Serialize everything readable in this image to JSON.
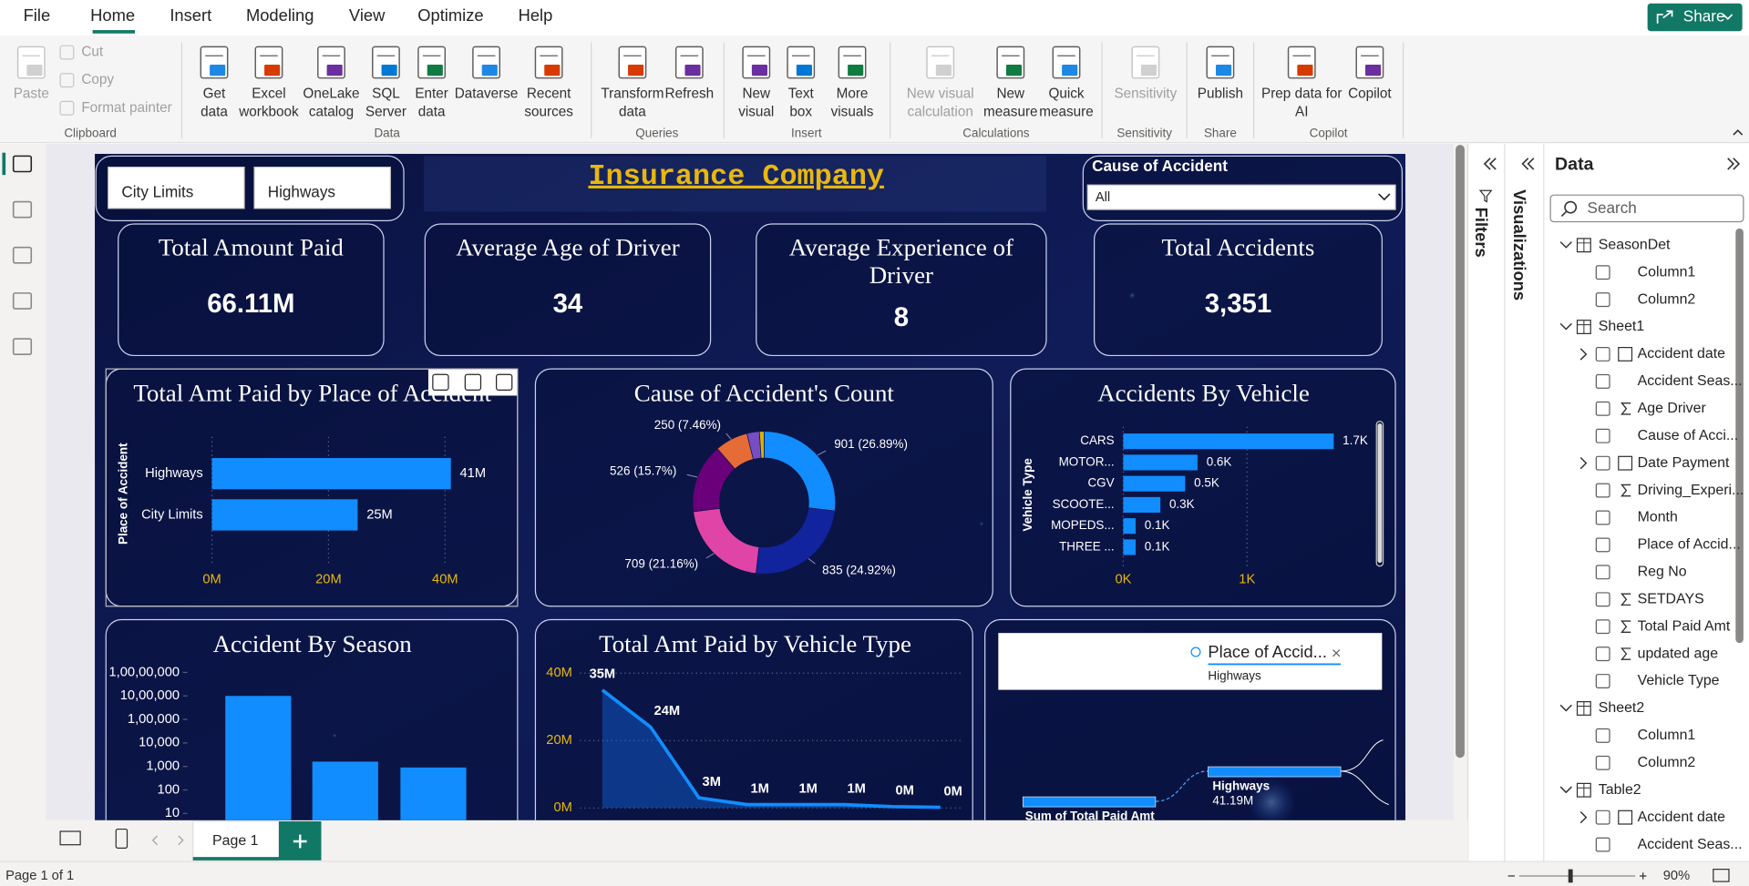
{
  "menu": [
    "File",
    "Home",
    "Insert",
    "Modeling",
    "View",
    "Optimize",
    "Help"
  ],
  "share": "Share",
  "ribbon": [
    {
      "group": "Clipboard",
      "buttons": [
        {
          "label": "Paste",
          "disabled": true
        },
        {
          "label": "Cut",
          "disabled": true
        },
        {
          "label": "Copy",
          "disabled": true
        },
        {
          "label": "Format painter",
          "disabled": true
        }
      ]
    },
    {
      "group": "Data",
      "buttons": [
        {
          "label": "Get data"
        },
        {
          "label": "Excel workbook"
        },
        {
          "label": "OneLake catalog"
        },
        {
          "label": "SQL Server"
        },
        {
          "label": "Enter data"
        },
        {
          "label": "Dataverse"
        },
        {
          "label": "Recent sources"
        }
      ]
    },
    {
      "group": "Queries",
      "buttons": [
        {
          "label": "Transform data"
        },
        {
          "label": "Refresh"
        }
      ]
    },
    {
      "group": "Insert",
      "buttons": [
        {
          "label": "New visual"
        },
        {
          "label": "Text box"
        },
        {
          "label": "More visuals"
        }
      ]
    },
    {
      "group": "Calculations",
      "buttons": [
        {
          "label": "New visual calculation",
          "disabled": true
        },
        {
          "label": "New measure"
        },
        {
          "label": "Quick measure"
        }
      ]
    },
    {
      "group": "Sensitivity",
      "buttons": [
        {
          "label": "Sensitivity",
          "disabled": true
        }
      ]
    },
    {
      "group": "Share",
      "buttons": [
        {
          "label": "Publish"
        }
      ]
    },
    {
      "group": "Copilot",
      "buttons": [
        {
          "label": "Prep data for AI"
        },
        {
          "label": "Copilot"
        }
      ]
    }
  ],
  "report": {
    "slicer": [
      "City Limits",
      "Highways"
    ],
    "title": "Insurance Company",
    "dropdown": {
      "label": "Cause of Accident",
      "value": "All"
    },
    "cards": [
      {
        "label": "Total Amount Paid",
        "value": "66.11M"
      },
      {
        "label": "Average Age of Driver",
        "value": "34"
      },
      {
        "label": "Average Experience of Driver",
        "value": "8"
      },
      {
        "label": "Total Accidents",
        "value": "3,351"
      }
    ],
    "place_chart": {
      "type": "hbar",
      "title": "Total Amt Paid by Place of Accident",
      "y_label": "Place of Accident",
      "categories": [
        "Highways",
        "City Limits"
      ],
      "values": [
        41000000,
        25000000
      ],
      "value_labels": [
        "41M",
        "25M"
      ],
      "color": "#118dff",
      "xlim": [
        0,
        48000000
      ],
      "xticks": [
        {
          "value": 0,
          "label": "0M"
        },
        {
          "value": 20000000,
          "label": "20M"
        },
        {
          "value": 40000000,
          "label": "40M"
        }
      ],
      "grid": true
    },
    "cause_chart": {
      "type": "donut",
      "title": "Cause of Accident's Count",
      "categories": [
        null,
        null,
        null,
        null,
        null,
        null,
        null
      ],
      "values": [
        901,
        835,
        709,
        526,
        250,
        95,
        35
      ],
      "value_labels": [
        "901 (26.89%)",
        "835 (24.92%)",
        "709 (21.16%)",
        "526 (15.7%)",
        "250 (7.46%)",
        null,
        null
      ],
      "colors": [
        "#118dff",
        "#12239e",
        "#e044a7",
        "#6b007b",
        "#e66c37",
        "#744ec2",
        "#d9b300"
      ]
    },
    "vehicle_chart": {
      "type": "hbar",
      "title": "Accidents By Vehicle",
      "y_label": "Vehicle Type",
      "categories": [
        "CARS",
        "MOTOR...",
        "CGV",
        "SCOOTE...",
        "MOPEDS...",
        "THREE ..."
      ],
      "values": [
        1700,
        600,
        500,
        300,
        100,
        100
      ],
      "value_labels": [
        "1.7K",
        "0.6K",
        "0.5K",
        "0.3K",
        "0.1K",
        "0.1K"
      ],
      "color": "#118dff",
      "xlim": [
        0,
        2000
      ],
      "xticks": [
        {
          "value": 0,
          "label": "0K"
        },
        {
          "value": 1000,
          "label": "1K"
        }
      ],
      "grid": true
    },
    "season_chart": {
      "type": "bar",
      "title": "Accident By Season",
      "log": true,
      "categories": [
        null,
        null,
        null
      ],
      "values": [
        1000000,
        1600,
        900
      ],
      "color": "#118dff",
      "ylim": [
        1,
        20000000
      ],
      "yticks": [
        10,
        100,
        {
          "value": 1000,
          "label": "1,000"
        },
        {
          "value": 10000,
          "label": "10,000"
        },
        {
          "value": 100000,
          "label": "1,00,000"
        },
        {
          "value": 1000000,
          "label": "10,00,000"
        },
        {
          "value": 10000000,
          "label": "1,00,00,000"
        }
      ]
    },
    "vehicle_amt_chart": {
      "type": "area",
      "title": "Total Amt Paid by Vehicle Type",
      "categories": [
        null,
        null,
        null,
        null,
        null,
        null,
        null,
        null
      ],
      "values": [
        35000000,
        24000000,
        3000000,
        1000000,
        1000000,
        1000000,
        400000,
        200000
      ],
      "value_labels": [
        "35M",
        "24M",
        "3M",
        "1M",
        "1M",
        "1M",
        "0M",
        "0M"
      ],
      "color": "#118dff",
      "ylim": [
        0,
        42000000
      ],
      "yticks": [
        {
          "value": 0,
          "label": "0M"
        },
        {
          "value": 20000000,
          "label": "20M"
        },
        {
          "value": 40000000,
          "label": "40M"
        }
      ],
      "grid": true
    },
    "tree": {
      "field": "Place of Accid...",
      "filter": "Highways",
      "root": "Sum of Total Paid Amt",
      "node": "Highways",
      "node_value": "41.19M"
    }
  },
  "panes": {
    "filters": "Filters",
    "visualizations": "Visualizations",
    "data": {
      "title": "Data",
      "search": "Search",
      "tables": [
        {
          "name": "SeasonDet",
          "fields": [
            {
              "name": "Column1"
            },
            {
              "name": "Column2"
            }
          ]
        },
        {
          "name": "Sheet1",
          "fields": [
            {
              "name": "Accident date",
              "date": true
            },
            {
              "name": "Accident Seas..."
            },
            {
              "name": "Age Driver",
              "sum": true
            },
            {
              "name": "Cause of Acci..."
            },
            {
              "name": "Date Payment",
              "date": true
            },
            {
              "name": "Driving_Experi...",
              "sum": true
            },
            {
              "name": "Month"
            },
            {
              "name": "Place of Accid..."
            },
            {
              "name": "Reg No"
            },
            {
              "name": "SETDAYS",
              "sum": true
            },
            {
              "name": "Total Paid Amt",
              "sum": true
            },
            {
              "name": "updated age",
              "sum": true
            },
            {
              "name": "Vehicle Type"
            }
          ]
        },
        {
          "name": "Sheet2",
          "fields": [
            {
              "name": "Column1"
            },
            {
              "name": "Column2"
            }
          ]
        },
        {
          "name": "Table2",
          "fields": [
            {
              "name": "Accident date",
              "date": true
            },
            {
              "name": "Accident Seas..."
            }
          ]
        }
      ]
    }
  },
  "page_tab": "Page 1",
  "status": "Page 1 of 1",
  "zoom": "90%"
}
